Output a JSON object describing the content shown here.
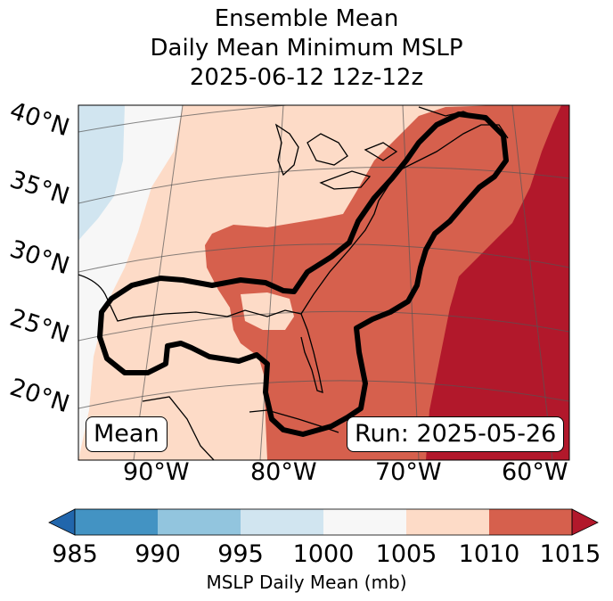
{
  "title": {
    "line1": "Ensemble Mean",
    "line2": "Daily Mean Minimum MSLP",
    "line3": "2025-06-12 12z-12z"
  },
  "badges": {
    "left": "Mean",
    "right": "Run: 2025-05-26"
  },
  "lat_labels": [
    "40°N",
    "35°N",
    "30°N",
    "25°N",
    "20°N"
  ],
  "lon_labels": [
    "90°W",
    "80°W",
    "70°W",
    "60°W"
  ],
  "colorbar": {
    "ticks": [
      "985",
      "990",
      "995",
      "1000",
      "1005",
      "1010",
      "1015"
    ],
    "label": "MSLP Daily Mean (mb)",
    "colors": [
      "#2166ac",
      "#4393c3",
      "#92c5de",
      "#d1e5f0",
      "#f7f7f7",
      "#fddbc7",
      "#d6604d",
      "#b2182b"
    ]
  }
}
